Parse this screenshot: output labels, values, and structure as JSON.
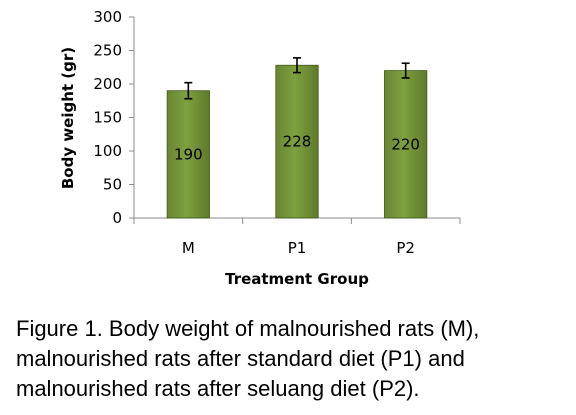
{
  "chart_data": {
    "type": "bar",
    "categories": [
      "M",
      "P1",
      "P2"
    ],
    "values": [
      190,
      228,
      220
    ],
    "errors": [
      12,
      11,
      11
    ],
    "data_labels": [
      "190",
      "228",
      "220"
    ],
    "xlabel": "Treatment Group",
    "ylabel": "Body weight (gr)",
    "ylim": [
      0,
      300
    ],
    "yticks": [
      0,
      50,
      100,
      150,
      200,
      250,
      300
    ],
    "grid": false,
    "bar_color": "#76923c"
  },
  "caption": {
    "lines": [
      "Figure 1.   Body weight of malnourished rats (M),",
      "malnourished rats after standard diet (P1) and",
      "malnourished rats after seluang diet (P2)."
    ]
  }
}
